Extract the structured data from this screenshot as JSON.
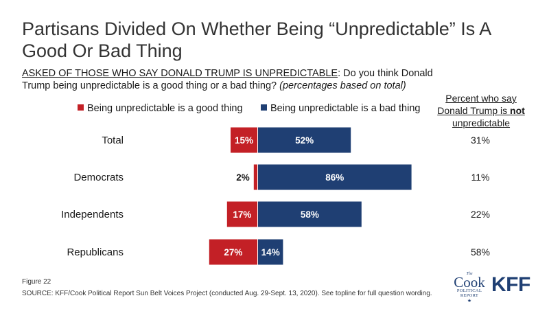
{
  "title": "Partisans Divided On Whether Being “Unpredictable” Is A Good Or Bad Thing",
  "question": {
    "lead": "ASKED OF THOSE WHO SAY DONALD TRUMP IS UNPREDICTABLE",
    "text": ": Do you think Donald Trump being unpredictable is a good thing or a bad thing?",
    "note": "(percentages based on total)"
  },
  "side_header": {
    "line1": "Percent who say",
    "line2_pre": "Donald Trump is ",
    "line2_bold": "not",
    "line3": "unpredictable"
  },
  "colors": {
    "good": "#c32026",
    "bad": "#1f3f73"
  },
  "chart_data": {
    "type": "bar",
    "orientation": "horizontal-diverging",
    "categories": [
      "Total",
      "Democrats",
      "Independents",
      "Republicans"
    ],
    "series": [
      {
        "name": "Being unpredictable is a good thing",
        "values": [
          15,
          2,
          17,
          27
        ],
        "labels": [
          "15%",
          "2%",
          "17%",
          "27%"
        ],
        "color": "#c32026"
      },
      {
        "name": "Being unpredictable is a bad thing",
        "values": [
          52,
          86,
          58,
          14
        ],
        "labels": [
          "52%",
          "86%",
          "58%",
          "14%"
        ],
        "color": "#1f3f73"
      }
    ],
    "side_column": {
      "header": "Percent who say Donald Trump is not unpredictable",
      "values": [
        31,
        11,
        22,
        58
      ],
      "labels": [
        "31%",
        "11%",
        "22%",
        "58%"
      ]
    }
  },
  "footer": {
    "figure": "Figure 22",
    "source": "SOURCE: KFF/Cook Political Report Sun Belt Voices Project (conducted Aug. 29-Sept. 13, 2020). See topline for full question wording."
  },
  "logos": {
    "cook_the": "The",
    "cook_name": "Cook",
    "cook_line1": "POLITICAL",
    "cook_line2": "REPORT",
    "cook_star": "★",
    "kff": "KFF"
  }
}
